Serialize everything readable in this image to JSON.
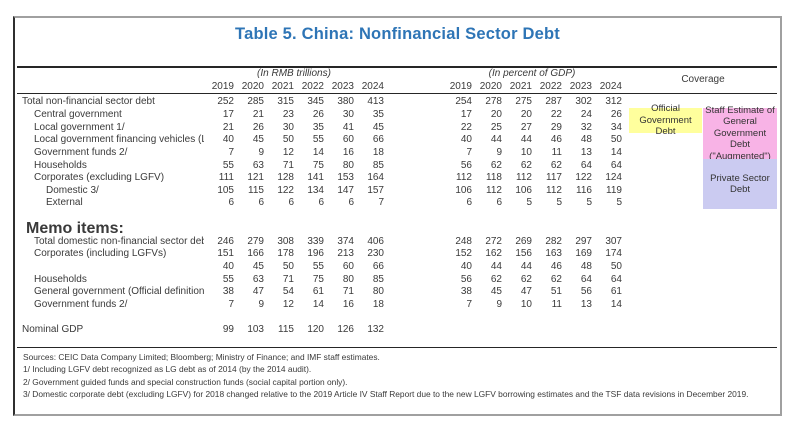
{
  "title": "Table 5. China: Nonfinancial Sector Debt",
  "header": {
    "group_rmb": "(In RMB trillions)",
    "group_gdp": "(In percent of GDP)",
    "coverage": "Coverage",
    "years": [
      "2019",
      "2020",
      "2021",
      "2022",
      "2023",
      "2024"
    ]
  },
  "coverage_boxes": {
    "official": {
      "label": "Official Government Debt",
      "color": "#FFFF9D"
    },
    "augmented": {
      "label": "Staff Estimate of General Government Debt (\"Augmented\")",
      "color": "#F8B3E6"
    },
    "private": {
      "label": "Private Sector Debt",
      "color": "#CBCBF1"
    }
  },
  "colors": {
    "title_blue": "#2E75B6",
    "rule": "#262626"
  },
  "table": {
    "sections": [
      {
        "rows": [
          {
            "label": "Total non-financial sector debt",
            "indent": 0,
            "rmb": [
              252,
              285,
              315,
              345,
              380,
              413
            ],
            "gdp": [
              254,
              278,
              275,
              287,
              302,
              312
            ]
          },
          {
            "label": "Central government",
            "indent": 1,
            "rmb": [
              17,
              21,
              23,
              26,
              30,
              35
            ],
            "gdp": [
              17,
              20,
              20,
              22,
              24,
              26
            ]
          },
          {
            "label": "Local government 1/",
            "indent": 1,
            "rmb": [
              21,
              26,
              30,
              35,
              41,
              45
            ],
            "gdp": [
              22,
              25,
              27,
              29,
              32,
              34
            ]
          },
          {
            "label": "Local government financing vehicles (LGFV)",
            "indent": 1,
            "rmb": [
              40,
              45,
              50,
              55,
              60,
              66
            ],
            "gdp": [
              40,
              44,
              44,
              46,
              48,
              50
            ]
          },
          {
            "label": "Government funds 2/",
            "indent": 1,
            "rmb": [
              7,
              9,
              12,
              14,
              16,
              18
            ],
            "gdp": [
              7,
              9,
              10,
              11,
              13,
              14
            ]
          },
          {
            "label": "Households",
            "indent": 1,
            "rmb": [
              55,
              63,
              71,
              75,
              80,
              85
            ],
            "gdp": [
              56,
              62,
              62,
              62,
              64,
              64
            ]
          },
          {
            "label": "Corporates (excluding LGFV)",
            "indent": 1,
            "rmb": [
              111,
              121,
              128,
              141,
              153,
              164
            ],
            "gdp": [
              112,
              118,
              112,
              117,
              122,
              124
            ]
          },
          {
            "label": "Domestic 3/",
            "indent": 2,
            "rmb": [
              105,
              115,
              122,
              134,
              147,
              157
            ],
            "gdp": [
              106,
              112,
              106,
              112,
              116,
              119
            ]
          },
          {
            "label": "External",
            "indent": 2,
            "rmb": [
              6,
              6,
              6,
              6,
              6,
              7
            ],
            "gdp": [
              6,
              6,
              5,
              5,
              5,
              5
            ]
          }
        ]
      },
      {
        "heading": "Memo items:",
        "rows": [
          {
            "label": "Total domestic non-financial sector debt",
            "indent": 1,
            "rmb": [
              246,
              279,
              308,
              339,
              374,
              406
            ],
            "gdp": [
              248,
              272,
              269,
              282,
              297,
              307
            ]
          },
          {
            "label": "Corporates (including LGFVs)",
            "indent": 1,
            "rmb": [
              151,
              166,
              178,
              196,
              213,
              230
            ],
            "gdp": [
              152,
              162,
              156,
              163,
              169,
              174
            ]
          },
          {
            "label": "",
            "indent": 1,
            "rmb": [
              40,
              45,
              50,
              55,
              60,
              66
            ],
            "gdp": [
              40,
              44,
              44,
              46,
              48,
              50
            ]
          },
          {
            "label": "Households",
            "indent": 1,
            "rmb": [
              55,
              63,
              71,
              75,
              80,
              85
            ],
            "gdp": [
              56,
              62,
              62,
              62,
              64,
              64
            ]
          },
          {
            "label": "General government (Official definition)",
            "indent": 1,
            "rmb": [
              38,
              47,
              54,
              61,
              71,
              80
            ],
            "gdp": [
              38,
              45,
              47,
              51,
              56,
              61
            ]
          },
          {
            "label": "Government funds 2/",
            "indent": 1,
            "rmb": [
              7,
              9,
              12,
              14,
              16,
              18
            ],
            "gdp": [
              7,
              9,
              10,
              11,
              13,
              14
            ]
          }
        ]
      },
      {
        "rows": [
          {
            "label": "Nominal GDP",
            "indent": 0,
            "rmb": [
              99,
              103,
              115,
              120,
              126,
              132
            ],
            "gdp": [
              "",
              "",
              "",
              "",
              "",
              ""
            ]
          }
        ]
      }
    ]
  },
  "footnotes": [
    "Sources: CEIC Data Company Limited; Bloomberg; Ministry of Finance; and IMF staff estimates.",
    "1/ Including LGFV debt recognized as LG debt as of 2014 (by the 2014 audit).",
    "2/ Government guided funds and special construction funds (social capital portion only).",
    "3/ Domestic corporate debt (excluding LGFV) for 2018 changed relative to the 2019 Article IV Staff Report due to the new LGFV borrowing estimates and the TSF data revisions in December 2019."
  ]
}
